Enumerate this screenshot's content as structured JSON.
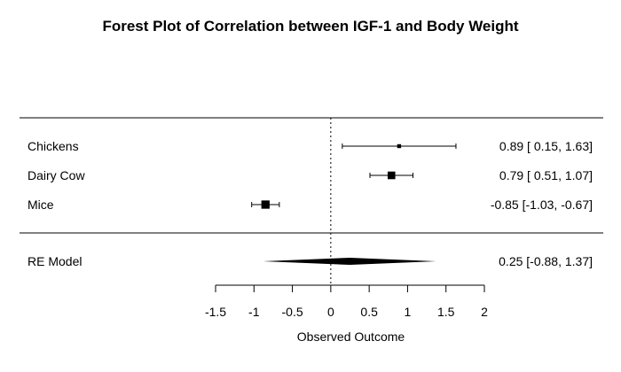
{
  "chart_data": {
    "type": "forest",
    "title": "Forest Plot of Correlation between IGF-1 and Body Weight",
    "xlabel": "Observed Outcome",
    "xlim": [
      -1.5,
      2
    ],
    "xticks": [
      -1.5,
      -1,
      -0.5,
      0,
      0.5,
      1,
      1.5,
      2
    ],
    "xtick_labels": [
      "-1.5",
      "-1",
      "-0.5",
      "0",
      "0.5",
      "1",
      "1.5",
      "2"
    ],
    "reference_line": 0,
    "studies": [
      {
        "label": "Chickens",
        "estimate": 0.89,
        "ci_lower": 0.15,
        "ci_upper": 1.63,
        "text": "0.89 [ 0.15,  1.63]",
        "weight": 0.2
      },
      {
        "label": "Dairy Cow",
        "estimate": 0.79,
        "ci_lower": 0.51,
        "ci_upper": 1.07,
        "text": "0.79 [ 0.51,  1.07]",
        "weight": 0.8
      },
      {
        "label": "Mice",
        "estimate": -0.85,
        "ci_lower": -1.03,
        "ci_upper": -0.67,
        "text": "-0.85 [-1.03, -0.67]",
        "weight": 0.9
      }
    ],
    "summary": {
      "label": "RE Model",
      "estimate": 0.25,
      "ci_lower": -0.88,
      "ci_upper": 1.37,
      "text": "0.25 [-0.88,  1.37]"
    }
  }
}
